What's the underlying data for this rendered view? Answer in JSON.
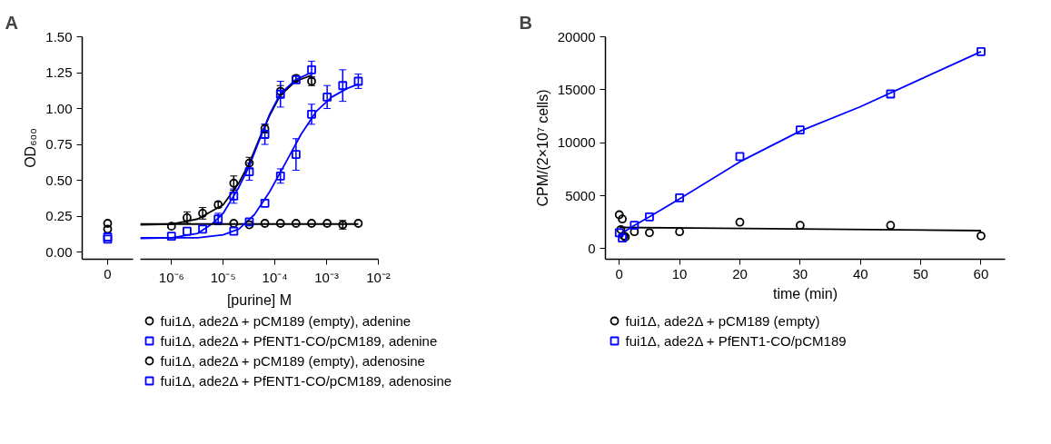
{
  "chart_data": [
    {
      "type": "scatter",
      "title": "A",
      "ylabel": "OD₆₀₀",
      "categories": [
        "0"
      ],
      "ylim": [
        -0.05,
        1.5
      ],
      "yticks": [
        {
          "value": 0,
          "label": "0.00"
        },
        {
          "value": 0.25,
          "label": "0.25"
        },
        {
          "value": 0.5,
          "label": "0.50"
        },
        {
          "value": 0.75,
          "label": "0.75"
        },
        {
          "value": 1,
          "label": "1.00"
        },
        {
          "value": 1.25,
          "label": "1.25"
        },
        {
          "value": 1.5,
          "label": "1.50"
        }
      ],
      "grid": false,
      "series": [
        {
          "color": "#000000",
          "marker": "circle",
          "x": [
            "0"
          ],
          "values": [
            0.16
          ]
        },
        {
          "color": "#0000ff",
          "marker": "square",
          "x": [
            "0"
          ],
          "values": [
            0.09
          ]
        },
        {
          "color": "#000000",
          "marker": "circle",
          "x": [
            "0"
          ],
          "values": [
            0.2
          ]
        },
        {
          "color": "#0000ff",
          "marker": "square",
          "x": [
            "0"
          ],
          "values": [
            0.105
          ]
        }
      ]
    },
    {
      "type": "scatter",
      "xlabel": "[purine] M",
      "log": "x",
      "xlim": [
        2.5e-07,
        0.01
      ],
      "ylim": [
        -0.05,
        1.5
      ],
      "tick_labels": "x",
      "xticks": [
        {
          "value": 1e-06,
          "label": "10⁻⁶"
        },
        {
          "value": 1e-05,
          "label": "10⁻⁵"
        },
        {
          "value": 0.0001,
          "label": "10⁻⁴"
        },
        {
          "value": 0.001,
          "label": "10⁻³"
        },
        {
          "value": 0.01,
          "label": "10⁻²"
        }
      ],
      "grid": false,
      "legend": "bottom",
      "series": [
        {
          "type": "line",
          "color": "#000000",
          "x": [
            2.5e-07,
            1e-06,
            3.2e-06,
            1e-05,
            2e-05,
            3.2e-05,
            5e-05,
            7.9e-05,
            0.000126,
            0.00025,
            0.0005
          ],
          "values": [
            0.19,
            0.195,
            0.23,
            0.33,
            0.48,
            0.62,
            0.79,
            0.95,
            1.09,
            1.19,
            1.23
          ]
        },
        {
          "type": "line",
          "color": "#0000ff",
          "x": [
            2.5e-07,
            1e-06,
            3.2e-06,
            6.3e-06,
            1e-05,
            2e-05,
            3.2e-05,
            5e-05,
            7.9e-05,
            0.000126,
            0.00025,
            0.0005
          ],
          "values": [
            0.095,
            0.1,
            0.13,
            0.2,
            0.27,
            0.45,
            0.6,
            0.78,
            0.96,
            1.1,
            1.2,
            1.25
          ]
        },
        {
          "type": "line",
          "color": "#000000",
          "x": [
            2.5e-07,
            0.0041
          ],
          "values": [
            0.195,
            0.195
          ]
        },
        {
          "type": "line",
          "color": "#0000ff",
          "x": [
            2.5e-07,
            3.2e-06,
            1e-05,
            2e-05,
            4e-05,
            7.9e-05,
            0.00016,
            0.00032,
            0.00063,
            0.00126,
            0.0025,
            0.0041
          ],
          "values": [
            0.1,
            0.1,
            0.12,
            0.16,
            0.26,
            0.42,
            0.62,
            0.82,
            0.98,
            1.08,
            1.14,
            1.17
          ]
        },
        {
          "name": "fui1Δ, ade2Δ + pCM189 (empty), adenine",
          "color": "#000000",
          "marker": "circle",
          "x": [
            1e-06,
            2e-06,
            4e-06,
            8e-06,
            1.6e-05,
            3.2e-05,
            6.4e-05,
            0.000128,
            0.000256,
            0.000512
          ],
          "values": [
            0.18,
            0.24,
            0.27,
            0.33,
            0.48,
            0.62,
            0.86,
            1.12,
            1.21,
            1.19
          ],
          "errors": [
            null,
            0.04,
            0.04,
            0.02,
            0.05,
            0.04,
            0.03,
            0.04,
            0.02,
            0.03
          ]
        },
        {
          "name": "fui1Δ, ade2Δ + PfENT1-CO/pCM189, adenine",
          "color": "#0000ff",
          "marker": "square",
          "x": [
            1e-06,
            2e-06,
            4e-06,
            8e-06,
            1.6e-05,
            3.2e-05,
            6.4e-05,
            0.000128,
            0.000256,
            0.000512
          ],
          "values": [
            0.11,
            0.145,
            0.16,
            0.23,
            0.39,
            0.56,
            0.82,
            1.1,
            1.2,
            1.27
          ],
          "errors": [
            null,
            null,
            null,
            0.04,
            0.05,
            0.06,
            0.07,
            0.09,
            null,
            0.06
          ]
        },
        {
          "name": "fui1Δ, ade2Δ + pCM189 (empty), adenosine",
          "color": "#000000",
          "marker": "circle",
          "x": [
            1.6e-05,
            3.2e-05,
            6.4e-05,
            0.000128,
            0.000256,
            0.000512,
            0.001024,
            0.002048,
            0.004096
          ],
          "values": [
            0.2,
            0.19,
            0.2,
            0.2,
            0.2,
            0.2,
            0.2,
            0.19,
            0.2
          ],
          "errors": [
            null,
            null,
            null,
            null,
            null,
            null,
            null,
            0.03,
            null
          ]
        },
        {
          "name": "fui1Δ, ade2Δ + PfENT1-CO/pCM189, adenosine",
          "color": "#0000ff",
          "marker": "square",
          "x": [
            1.6e-05,
            3.2e-05,
            6.4e-05,
            0.000128,
            0.000256,
            0.000512,
            0.001024,
            0.002048,
            0.004096
          ],
          "values": [
            0.145,
            0.21,
            0.34,
            0.53,
            0.68,
            0.96,
            1.08,
            1.16,
            1.19
          ],
          "errors": [
            null,
            null,
            null,
            0.05,
            0.11,
            0.07,
            0.08,
            0.11,
            0.05
          ]
        }
      ]
    },
    {
      "type": "scatter",
      "title": "B",
      "xlabel": "time (min)",
      "ylabel": "CPM/(2×10⁷ cells)",
      "xlim": [
        -2.3,
        64
      ],
      "ylim": [
        -1000,
        20000
      ],
      "xticks": [
        0,
        10,
        20,
        30,
        40,
        50,
        60
      ],
      "yticks": [
        0,
        5000,
        10000,
        15000,
        20000
      ],
      "grid": false,
      "legend": "bottom",
      "series": [
        {
          "type": "line",
          "color": "#000000",
          "x": [
            0,
            60
          ],
          "values": [
            2000,
            1700
          ]
        },
        {
          "type": "line",
          "color": "#0000ff",
          "x": [
            0,
            2.5,
            5,
            10,
            20,
            30,
            40,
            50,
            60
          ],
          "values": [
            1300,
            2200,
            3000,
            4700,
            8200,
            11100,
            13400,
            16000,
            18600
          ]
        },
        {
          "name": "fui1Δ, ade2Δ + pCM189 (empty)",
          "color": "#000000",
          "marker": "circle",
          "x": [
            0,
            0.5,
            0.25,
            0.75,
            1,
            2.5,
            5,
            10,
            20,
            30,
            45,
            60
          ],
          "values": [
            3200,
            2800,
            1800,
            1200,
            1100,
            1600,
            1500,
            1600,
            2500,
            2200,
            2200,
            1200
          ]
        },
        {
          "name": "fui1Δ, ade2Δ + PfENT1-CO/pCM189",
          "color": "#0000ff",
          "marker": "square",
          "x": [
            0,
            0.5,
            2.5,
            5,
            10,
            20,
            30,
            45,
            60
          ],
          "values": [
            1500,
            1000,
            2200,
            3000,
            4800,
            8700,
            11200,
            14600,
            18600
          ]
        }
      ]
    }
  ]
}
